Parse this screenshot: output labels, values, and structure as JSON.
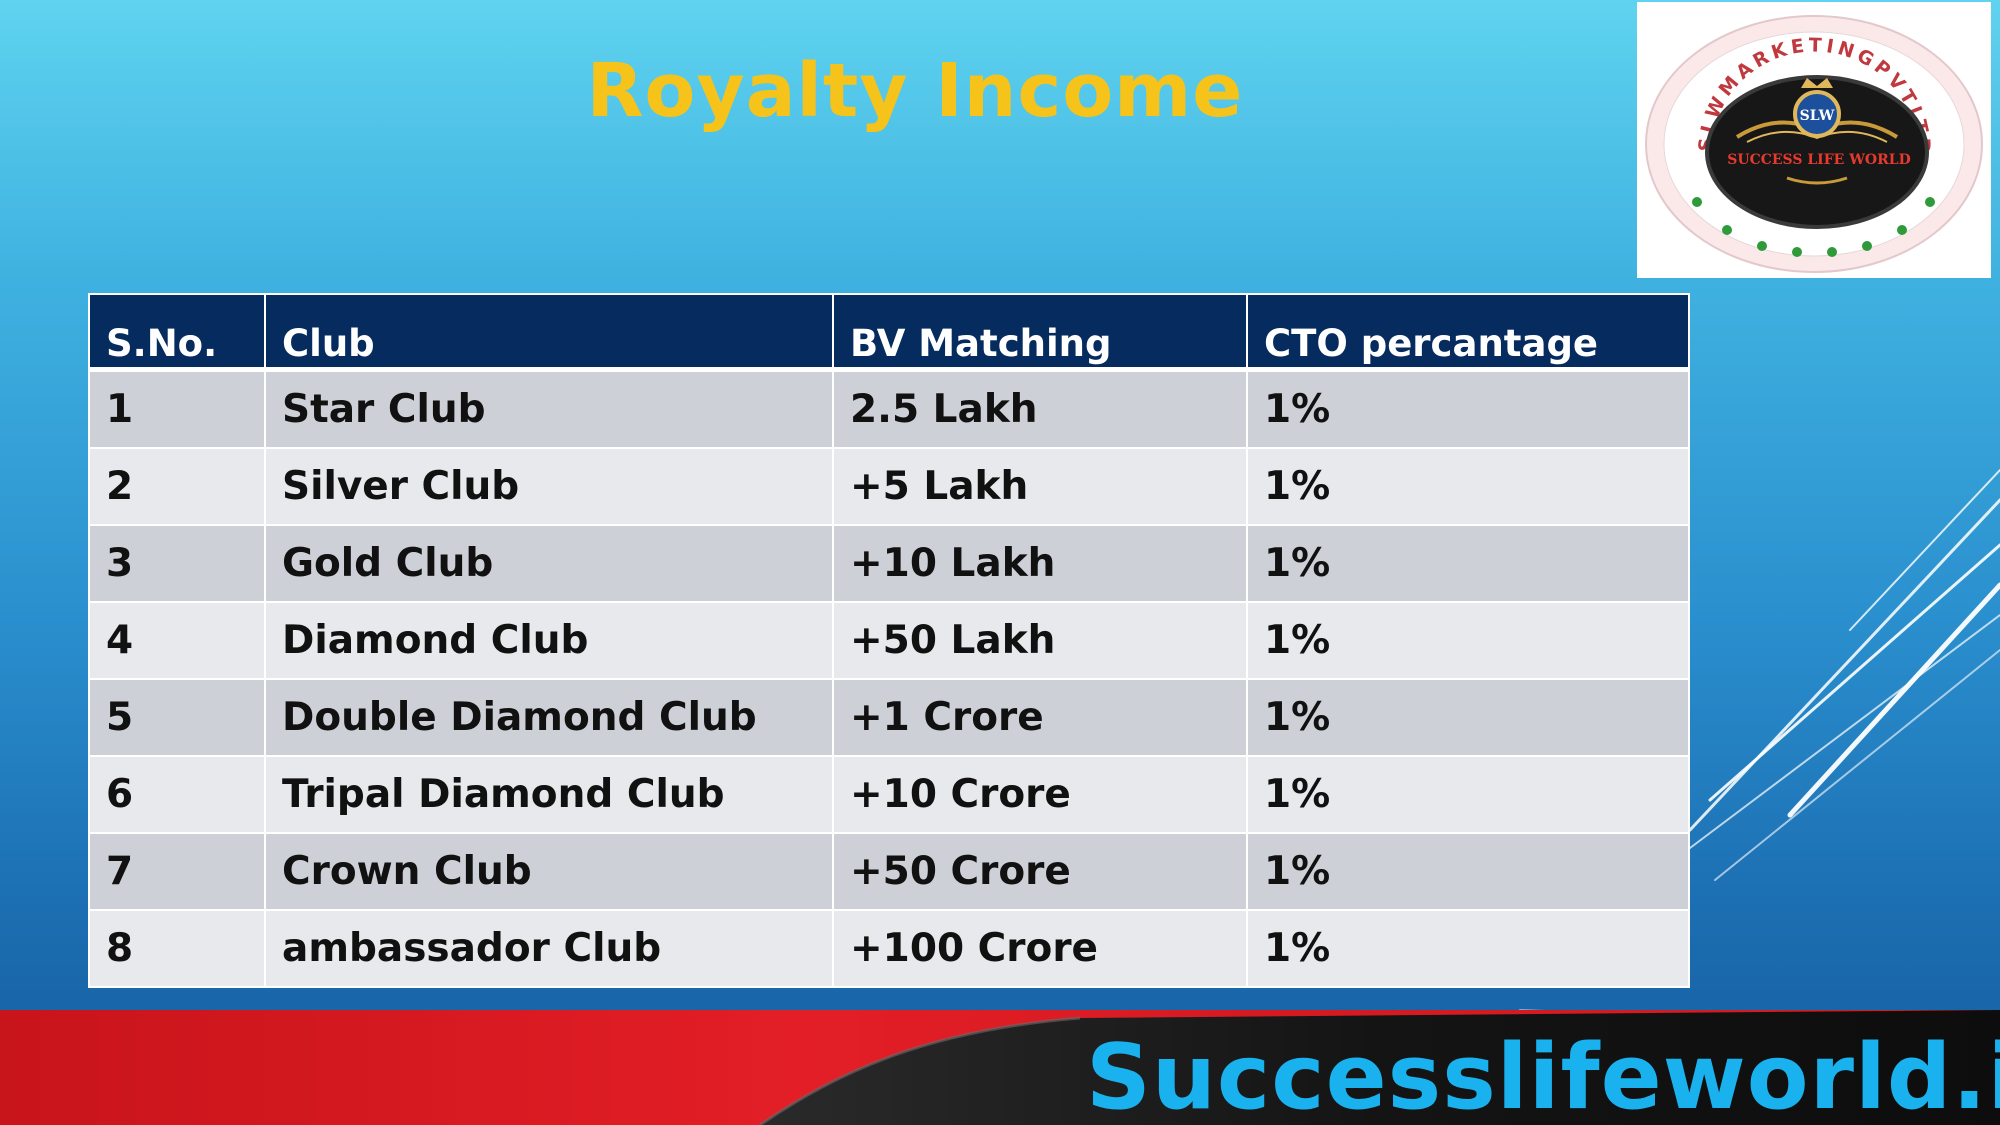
{
  "title": "Royalty Income",
  "logo": {
    "ring_text": "SLWMARKETINGPVTLTD",
    "center_text": "SUCCESS LIFE WORLD",
    "monogram": "SLW"
  },
  "table": {
    "headers": [
      "S.No.",
      "Club",
      "BV Matching",
      "CTO percantage"
    ],
    "rows": [
      [
        "1",
        "Star Club",
        "2.5 Lakh",
        "1%"
      ],
      [
        "2",
        "Silver Club",
        "+5 Lakh",
        "1%"
      ],
      [
        "3",
        "Gold Club",
        "+10 Lakh",
        "1%"
      ],
      [
        "4",
        "Diamond Club",
        "+50 Lakh",
        "1%"
      ],
      [
        "5",
        "Double Diamond Club",
        "+1 Crore",
        "1%"
      ],
      [
        "6",
        "Tripal Diamond Club",
        "+10 Crore",
        "1%"
      ],
      [
        "7",
        "Crown Club",
        "+50 Crore",
        "1%"
      ],
      [
        "8",
        "ambassador Club",
        "+100 Crore",
        "1%"
      ]
    ]
  },
  "footer": {
    "website": "Successlifeworld.in"
  },
  "colors": {
    "title": "#f6c31a",
    "header_bg": "#062b5f",
    "row_odd": "#cdd0d6",
    "row_even": "#e8e9ec",
    "footer_red": "#e11d25",
    "footer_dark": "#151515",
    "website": "#1ab2ee"
  }
}
